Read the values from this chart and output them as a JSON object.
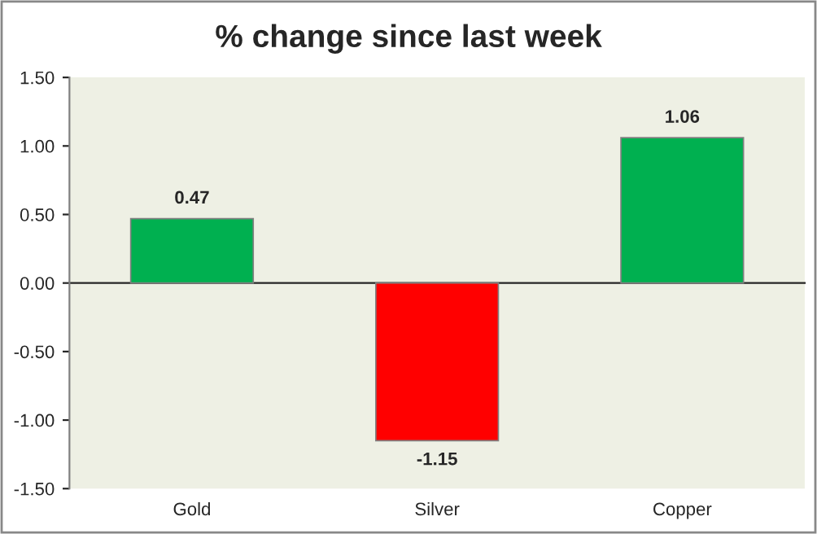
{
  "chart_data": {
    "type": "bar",
    "title": "% change since last week",
    "categories": [
      "Gold",
      "Silver",
      "Copper"
    ],
    "values": [
      0.47,
      -1.15,
      1.06
    ],
    "colors": [
      "#00b050",
      "#ff0000",
      "#00b050"
    ],
    "value_labels": [
      "0.47",
      "-1.15",
      "1.06"
    ],
    "ylim": [
      -1.5,
      1.5
    ],
    "yticks": [
      {
        "value": -1.5,
        "label": "-1.50"
      },
      {
        "value": -1.0,
        "label": "-1.00"
      },
      {
        "value": -0.5,
        "label": "-0.50"
      },
      {
        "value": 0.0,
        "label": "0.00"
      },
      {
        "value": 0.5,
        "label": "0.50"
      },
      {
        "value": 1.0,
        "label": "1.00"
      },
      {
        "value": 1.5,
        "label": "1.50"
      }
    ],
    "legend": false
  }
}
